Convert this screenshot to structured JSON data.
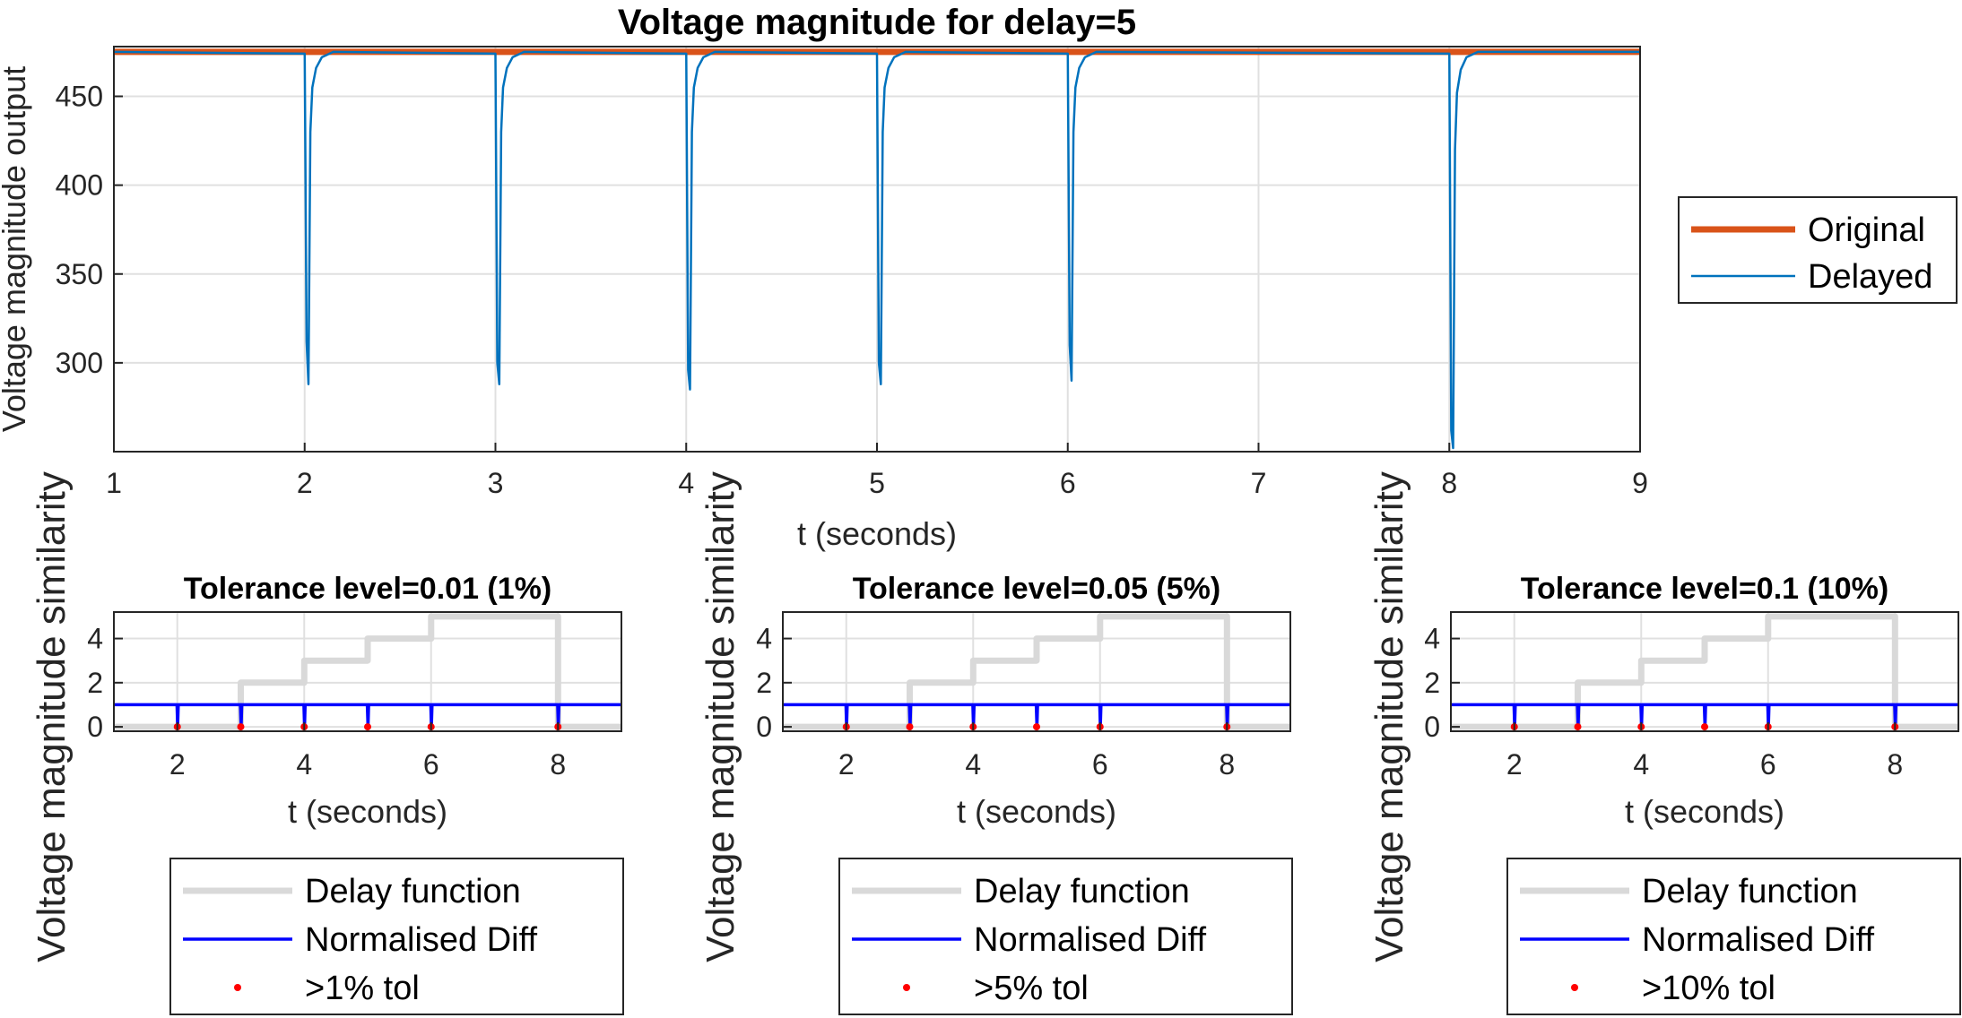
{
  "chart_data": [
    {
      "type": "line",
      "title": "Voltage magnitude for delay=5",
      "xlabel": "t (seconds)",
      "ylabel": "Voltage magnitude output",
      "xlim": [
        1,
        9
      ],
      "ylim": [
        250,
        478
      ],
      "xticks": [
        1,
        2,
        3,
        4,
        5,
        6,
        7,
        8,
        9
      ],
      "yticks": [
        300,
        350,
        400,
        450
      ],
      "grid": true,
      "legend_position": "right",
      "series": [
        {
          "name": "Original",
          "color": "#D95319",
          "x": [
            1,
            9
          ],
          "y": [
            475,
            475
          ]
        },
        {
          "name": "Delayed",
          "color": "#0072BD",
          "x": [
            1,
            2.0,
            2.01,
            2.02,
            2.03,
            2.04,
            2.06,
            2.09,
            2.15,
            3.0,
            3.01,
            3.02,
            3.03,
            3.04,
            3.06,
            3.09,
            3.15,
            4.0,
            4.01,
            4.02,
            4.03,
            4.04,
            4.06,
            4.09,
            4.15,
            5.0,
            5.01,
            5.02,
            5.03,
            5.04,
            5.06,
            5.09,
            5.15,
            6.0,
            6.01,
            6.02,
            6.03,
            6.04,
            6.06,
            6.09,
            6.15,
            8.0,
            8.01,
            8.02,
            8.03,
            8.04,
            8.06,
            8.09,
            8.15,
            9
          ],
          "y": [
            475,
            474,
            312,
            288,
            430,
            455,
            466,
            472,
            475,
            474,
            300,
            288,
            430,
            455,
            466,
            472,
            475,
            474,
            296,
            285,
            430,
            455,
            466,
            472,
            475,
            474,
            300,
            288,
            430,
            455,
            466,
            472,
            475,
            474,
            310,
            290,
            430,
            455,
            466,
            472,
            475,
            474,
            262,
            252,
            420,
            452,
            465,
            472,
            475,
            475
          ]
        }
      ]
    },
    {
      "type": "line",
      "title": "Tolerance level=0.01 (1%)",
      "xlabel": "t (seconds)",
      "ylabel": "Voltage magnitude similarity",
      "xlim": [
        1,
        9
      ],
      "ylim": [
        -0.2,
        5.2
      ],
      "xticks": [
        2,
        4,
        6,
        8
      ],
      "yticks": [
        0,
        2,
        4
      ],
      "grid": true,
      "legend_position": "below",
      "series": [
        {
          "name": "Delay function",
          "color": "#D9D9D9",
          "x": [
            1,
            3,
            3,
            4,
            4,
            5,
            5,
            6,
            6,
            8,
            8,
            9
          ],
          "y": [
            0,
            0,
            2,
            2,
            3,
            3,
            4,
            4,
            5,
            5,
            0,
            0
          ]
        },
        {
          "name": "Normalised Diff",
          "color": "#0000FF",
          "baseline": 1,
          "dips_at": [
            2,
            3,
            4,
            5,
            6,
            8
          ],
          "dip_value": 0
        },
        {
          "name": ">1% tol",
          "color": "#FF0000",
          "type": "scatter",
          "x": [
            2,
            3,
            4,
            5,
            6,
            8
          ],
          "y": [
            0,
            0,
            0,
            0,
            0,
            0
          ]
        }
      ]
    },
    {
      "type": "line",
      "title": "Tolerance level=0.05 (5%)",
      "xlabel": "t (seconds)",
      "ylabel": "Voltage magnitude similarity",
      "xlim": [
        1,
        9
      ],
      "ylim": [
        -0.2,
        5.2
      ],
      "xticks": [
        2,
        4,
        6,
        8
      ],
      "yticks": [
        0,
        2,
        4
      ],
      "grid": true,
      "legend_position": "below",
      "series": [
        {
          "name": "Delay function",
          "color": "#D9D9D9",
          "x": [
            1,
            3,
            3,
            4,
            4,
            5,
            5,
            6,
            6,
            8,
            8,
            9
          ],
          "y": [
            0,
            0,
            2,
            2,
            3,
            3,
            4,
            4,
            5,
            5,
            0,
            0
          ]
        },
        {
          "name": "Normalised Diff",
          "color": "#0000FF",
          "baseline": 1,
          "dips_at": [
            2,
            3,
            4,
            5,
            6,
            8
          ],
          "dip_value": 0
        },
        {
          "name": ">5% tol",
          "color": "#FF0000",
          "type": "scatter",
          "x": [
            2,
            3,
            4,
            5,
            6,
            8
          ],
          "y": [
            0,
            0,
            0,
            0,
            0,
            0
          ]
        }
      ]
    },
    {
      "type": "line",
      "title": "Tolerance level=0.1 (10%)",
      "xlabel": "t (seconds)",
      "ylabel": "Voltage magnitude similarity",
      "xlim": [
        1,
        9
      ],
      "ylim": [
        -0.2,
        5.2
      ],
      "xticks": [
        2,
        4,
        6,
        8
      ],
      "yticks": [
        0,
        2,
        4
      ],
      "grid": true,
      "legend_position": "below",
      "series": [
        {
          "name": "Delay function",
          "color": "#D9D9D9",
          "x": [
            1,
            3,
            3,
            4,
            4,
            5,
            5,
            6,
            6,
            8,
            8,
            9
          ],
          "y": [
            0,
            0,
            2,
            2,
            3,
            3,
            4,
            4,
            5,
            5,
            0,
            0
          ]
        },
        {
          "name": "Normalised Diff",
          "color": "#0000FF",
          "baseline": 1,
          "dips_at": [
            2,
            3,
            4,
            5,
            6,
            8
          ],
          "dip_value": 0
        },
        {
          "name": ">10% tol",
          "color": "#FF0000",
          "type": "scatter",
          "x": [
            2,
            3,
            4,
            5,
            6,
            8
          ],
          "y": [
            0,
            0,
            0,
            0,
            0,
            0
          ]
        }
      ]
    }
  ]
}
